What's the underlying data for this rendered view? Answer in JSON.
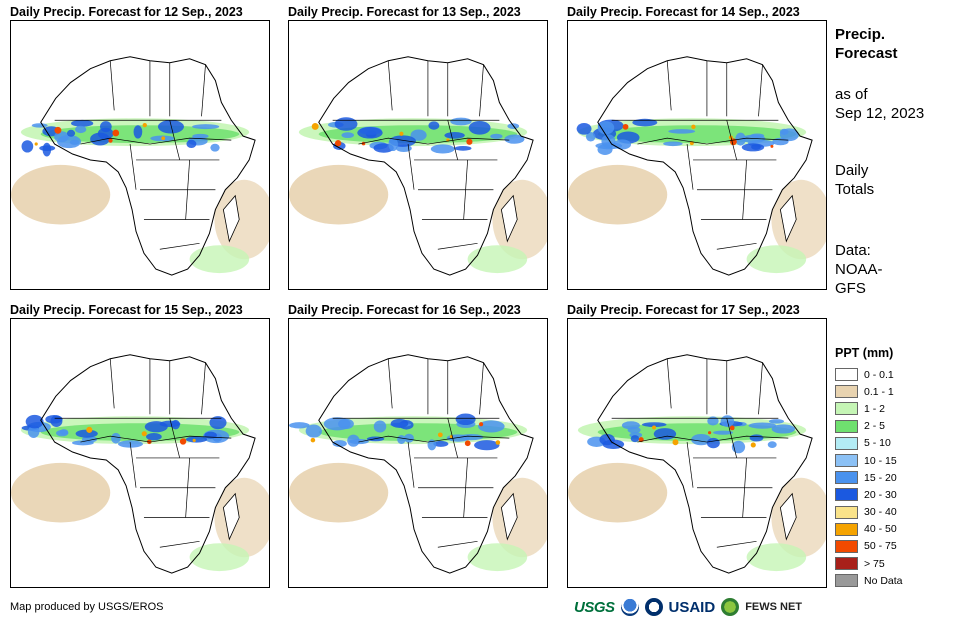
{
  "panels": [
    {
      "title": "Daily Precip. Forecast for 12 Sep., 2023"
    },
    {
      "title": "Daily Precip. Forecast for 13 Sep., 2023"
    },
    {
      "title": "Daily Precip. Forecast for 14 Sep., 2023"
    },
    {
      "title": "Daily Precip. Forecast for 15 Sep., 2023"
    },
    {
      "title": "Daily Precip. Forecast for 16 Sep., 2023"
    },
    {
      "title": "Daily Precip. Forecast for 17 Sep., 2023"
    }
  ],
  "sidebar": {
    "heading_line1": "Precip.",
    "heading_line2": "Forecast",
    "asof_line1": "as of",
    "asof_line2": "Sep 12, 2023",
    "totals_line1": "Daily",
    "totals_line2": "Totals",
    "data_line1": "Data:",
    "data_line2": "NOAA-",
    "data_line3": "GFS"
  },
  "legend": {
    "title": "PPT (mm)",
    "items": [
      {
        "label": "0 - 0.1",
        "color": "#ffffff"
      },
      {
        "label": "0.1 - 1",
        "color": "#e8d3b0"
      },
      {
        "label": "1 - 2",
        "color": "#c5f5b5"
      },
      {
        "label": "2 - 5",
        "color": "#6fe06f"
      },
      {
        "label": "5 - 10",
        "color": "#b3ecf5"
      },
      {
        "label": "10 - 15",
        "color": "#8cc1f5"
      },
      {
        "label": "15 - 20",
        "color": "#4a92ee"
      },
      {
        "label": "20 - 30",
        "color": "#1b59e0"
      },
      {
        "label": "30 - 40",
        "color": "#fae38a"
      },
      {
        "label": "40 - 50",
        "color": "#f5a300"
      },
      {
        "label": "50 - 75",
        "color": "#f24a00"
      },
      {
        "label": "> 75",
        "color": "#a8201a"
      },
      {
        "label": "No Data",
        "color": "#999999"
      }
    ]
  },
  "footer": {
    "credit": "Map produced by USGS/EROS",
    "logos": [
      "USGS",
      "NOAA",
      "USAID",
      "FEWS NET"
    ]
  }
}
